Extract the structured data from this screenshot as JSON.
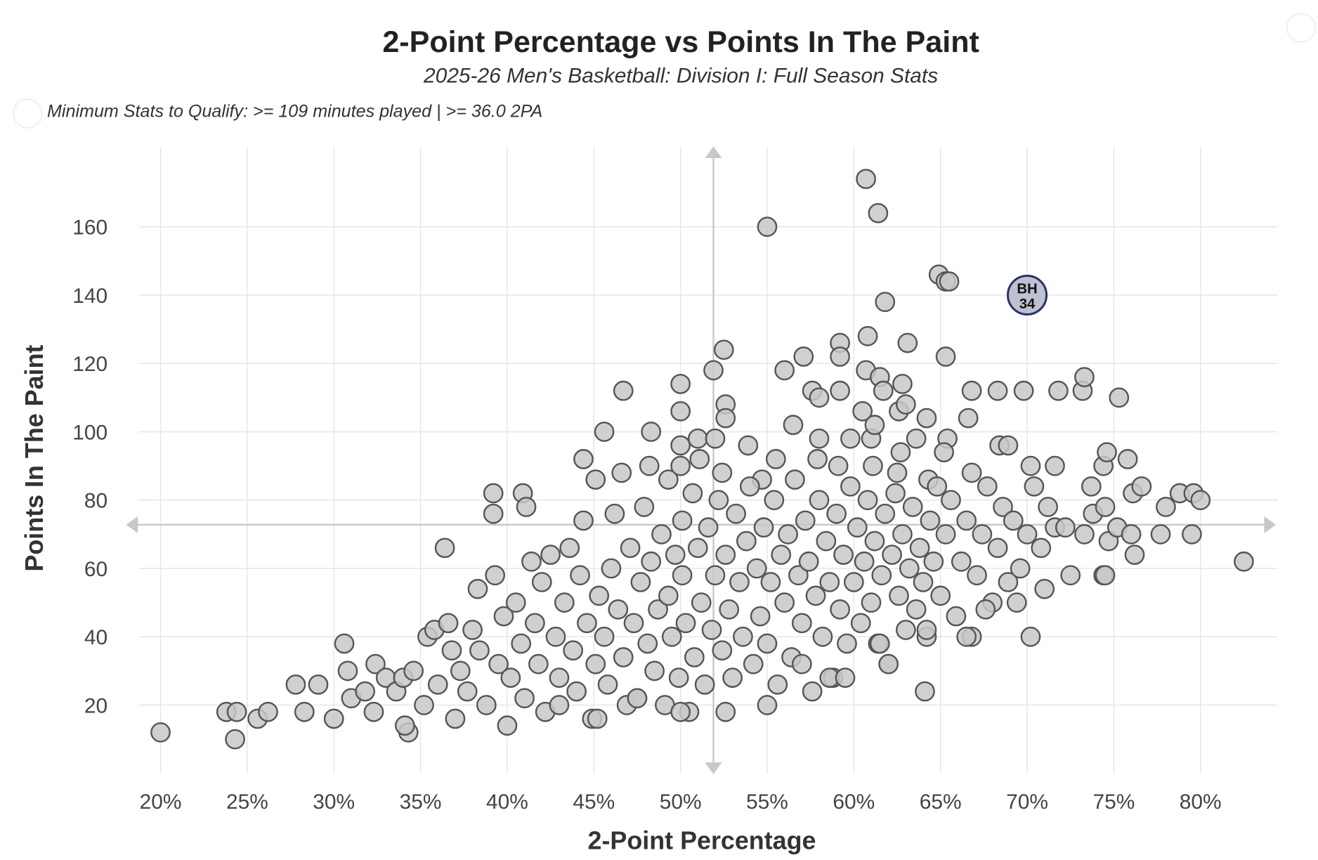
{
  "chart_data": {
    "type": "scatter",
    "title": "2-Point Percentage vs Points In The Paint",
    "subtitle": "2025-26 Men's Basketball: Division I: Full Season Stats",
    "note": "Minimum Stats to Qualify: >= 109 minutes played | >= 36.0 2PA",
    "xlabel": "2-Point Percentage",
    "ylabel": "Points In The Paint",
    "xlim": [
      17.5,
      84.5
    ],
    "ylim": [
      0,
      178
    ],
    "xticks": [
      20,
      25,
      30,
      35,
      40,
      45,
      50,
      55,
      60,
      65,
      70,
      75,
      80
    ],
    "xtick_labels": [
      "20%",
      "25%",
      "30%",
      "35%",
      "40%",
      "45%",
      "50%",
      "55%",
      "60%",
      "65%",
      "70%",
      "75%",
      "80%"
    ],
    "yticks": [
      20,
      40,
      60,
      80,
      100,
      120,
      140,
      160
    ],
    "ytick_labels": [
      "20",
      "40",
      "60",
      "80",
      "100",
      "120",
      "140",
      "160"
    ],
    "grid": true,
    "reference_lines": {
      "x": 51.9,
      "y": 72.8
    },
    "colors": {
      "point_fill": "#c8c8c8",
      "point_stroke": "#555555",
      "highlight_fill": "#c0c1cf",
      "highlight_stroke": "#26326a"
    },
    "highlight": {
      "x": 70.0,
      "y": 140,
      "label_line1": "BH",
      "label_line2": "34"
    },
    "points": [
      [
        60.7,
        174
      ],
      [
        61.4,
        164
      ],
      [
        55.0,
        160
      ],
      [
        64.9,
        146
      ],
      [
        65.3,
        144
      ],
      [
        65.5,
        144
      ],
      [
        61.8,
        138
      ],
      [
        59.2,
        126
      ],
      [
        63.1,
        126
      ],
      [
        60.8,
        128
      ],
      [
        52.5,
        124
      ],
      [
        51.9,
        118
      ],
      [
        56.0,
        118
      ],
      [
        60.7,
        118
      ],
      [
        65.3,
        122
      ],
      [
        59.2,
        122
      ],
      [
        57.1,
        122
      ],
      [
        46.7,
        112
      ],
      [
        50.0,
        114
      ],
      [
        61.5,
        116
      ],
      [
        61.7,
        112
      ],
      [
        62.8,
        114
      ],
      [
        66.8,
        112
      ],
      [
        68.3,
        112
      ],
      [
        69.8,
        112
      ],
      [
        71.8,
        112
      ],
      [
        73.2,
        112
      ],
      [
        73.3,
        116
      ],
      [
        75.3,
        110
      ],
      [
        50.0,
        106
      ],
      [
        52.6,
        108
      ],
      [
        57.6,
        112
      ],
      [
        58.0,
        110
      ],
      [
        59.2,
        112
      ],
      [
        60.5,
        106
      ],
      [
        61.0,
        98
      ],
      [
        62.6,
        106
      ],
      [
        63.0,
        108
      ],
      [
        63.6,
        98
      ],
      [
        64.2,
        104
      ],
      [
        65.4,
        98
      ],
      [
        66.6,
        104
      ],
      [
        45.6,
        100
      ],
      [
        48.3,
        100
      ],
      [
        50.0,
        96
      ],
      [
        51.0,
        98
      ],
      [
        52.0,
        98
      ],
      [
        52.6,
        104
      ],
      [
        53.9,
        96
      ],
      [
        56.5,
        102
      ],
      [
        58.0,
        98
      ],
      [
        59.8,
        98
      ],
      [
        61.2,
        102
      ],
      [
        62.7,
        94
      ],
      [
        65.2,
        94
      ],
      [
        68.4,
        96
      ],
      [
        68.9,
        96
      ],
      [
        44.4,
        92
      ],
      [
        45.1,
        86
      ],
      [
        46.6,
        88
      ],
      [
        48.2,
        90
      ],
      [
        49.3,
        86
      ],
      [
        50.0,
        90
      ],
      [
        51.1,
        92
      ],
      [
        52.4,
        88
      ],
      [
        54.7,
        86
      ],
      [
        55.5,
        92
      ],
      [
        57.9,
        92
      ],
      [
        59.1,
        90
      ],
      [
        61.1,
        90
      ],
      [
        62.5,
        88
      ],
      [
        64.3,
        86
      ],
      [
        66.8,
        88
      ],
      [
        70.2,
        90
      ],
      [
        71.6,
        90
      ],
      [
        74.4,
        90
      ],
      [
        20.0,
        12
      ],
      [
        24.3,
        10
      ],
      [
        23.8,
        18
      ],
      [
        24.4,
        18
      ],
      [
        25.6,
        16
      ],
      [
        26.2,
        18
      ],
      [
        27.8,
        26
      ],
      [
        28.3,
        18
      ],
      [
        29.1,
        26
      ],
      [
        30.0,
        16
      ],
      [
        30.6,
        38
      ],
      [
        30.8,
        30
      ],
      [
        31.0,
        22
      ],
      [
        31.8,
        24
      ],
      [
        32.3,
        18
      ],
      [
        32.4,
        32
      ],
      [
        33.0,
        28
      ],
      [
        33.6,
        24
      ],
      [
        34.3,
        12
      ],
      [
        34.1,
        14
      ],
      [
        34.0,
        28
      ],
      [
        34.6,
        30
      ],
      [
        35.2,
        20
      ],
      [
        35.4,
        40
      ],
      [
        35.8,
        42
      ],
      [
        36.0,
        26
      ],
      [
        36.4,
        66
      ],
      [
        36.6,
        44
      ],
      [
        36.8,
        36
      ],
      [
        37.0,
        16
      ],
      [
        37.3,
        30
      ],
      [
        37.7,
        24
      ],
      [
        38.0,
        42
      ],
      [
        38.3,
        54
      ],
      [
        38.4,
        36
      ],
      [
        38.8,
        20
      ],
      [
        39.2,
        82
      ],
      [
        39.2,
        76
      ],
      [
        39.3,
        58
      ],
      [
        39.5,
        32
      ],
      [
        39.8,
        46
      ],
      [
        40.0,
        14
      ],
      [
        40.2,
        28
      ],
      [
        40.5,
        50
      ],
      [
        40.8,
        38
      ],
      [
        40.9,
        82
      ],
      [
        41.1,
        78
      ],
      [
        41.0,
        22
      ],
      [
        41.4,
        62
      ],
      [
        41.6,
        44
      ],
      [
        41.8,
        32
      ],
      [
        42.0,
        56
      ],
      [
        42.2,
        18
      ],
      [
        42.5,
        64
      ],
      [
        42.8,
        40
      ],
      [
        43.0,
        28
      ],
      [
        43.3,
        50
      ],
      [
        43.6,
        66
      ],
      [
        43.8,
        36
      ],
      [
        44.0,
        24
      ],
      [
        44.2,
        58
      ],
      [
        44.4,
        74
      ],
      [
        44.6,
        44
      ],
      [
        44.9,
        16
      ],
      [
        45.1,
        32
      ],
      [
        45.3,
        52
      ],
      [
        45.6,
        40
      ],
      [
        45.8,
        26
      ],
      [
        46.0,
        60
      ],
      [
        46.2,
        76
      ],
      [
        46.4,
        48
      ],
      [
        46.7,
        34
      ],
      [
        46.9,
        20
      ],
      [
        47.1,
        66
      ],
      [
        47.3,
        44
      ],
      [
        47.5,
        22
      ],
      [
        47.7,
        56
      ],
      [
        47.9,
        78
      ],
      [
        48.1,
        38
      ],
      [
        48.3,
        62
      ],
      [
        48.5,
        30
      ],
      [
        48.7,
        48
      ],
      [
        48.9,
        70
      ],
      [
        49.1,
        20
      ],
      [
        49.3,
        52
      ],
      [
        49.5,
        40
      ],
      [
        49.7,
        64
      ],
      [
        49.9,
        28
      ],
      [
        50.1,
        74
      ],
      [
        50.1,
        58
      ],
      [
        50.3,
        44
      ],
      [
        50.5,
        18
      ],
      [
        50.7,
        82
      ],
      [
        50.8,
        34
      ],
      [
        51.0,
        66
      ],
      [
        51.2,
        50
      ],
      [
        51.4,
        26
      ],
      [
        51.6,
        72
      ],
      [
        51.8,
        42
      ],
      [
        52.0,
        58
      ],
      [
        52.2,
        80
      ],
      [
        52.4,
        36
      ],
      [
        52.6,
        64
      ],
      [
        52.8,
        48
      ],
      [
        53.0,
        28
      ],
      [
        53.2,
        76
      ],
      [
        53.4,
        56
      ],
      [
        53.6,
        40
      ],
      [
        53.8,
        68
      ],
      [
        54.0,
        84
      ],
      [
        54.2,
        32
      ],
      [
        54.4,
        60
      ],
      [
        54.6,
        46
      ],
      [
        54.8,
        72
      ],
      [
        55.0,
        38
      ],
      [
        55.2,
        56
      ],
      [
        55.4,
        80
      ],
      [
        55.6,
        26
      ],
      [
        55.8,
        64
      ],
      [
        56.0,
        50
      ],
      [
        56.2,
        70
      ],
      [
        56.4,
        34
      ],
      [
        56.6,
        86
      ],
      [
        56.8,
        58
      ],
      [
        57.0,
        44
      ],
      [
        57.2,
        74
      ],
      [
        57.4,
        62
      ],
      [
        57.6,
        24
      ],
      [
        57.8,
        52
      ],
      [
        58.0,
        80
      ],
      [
        58.2,
        40
      ],
      [
        58.4,
        68
      ],
      [
        58.6,
        56
      ],
      [
        58.8,
        28
      ],
      [
        59.0,
        76
      ],
      [
        59.2,
        48
      ],
      [
        59.4,
        64
      ],
      [
        59.6,
        38
      ],
      [
        59.8,
        84
      ],
      [
        60.0,
        56
      ],
      [
        60.2,
        72
      ],
      [
        60.4,
        44
      ],
      [
        60.6,
        62
      ],
      [
        60.8,
        80
      ],
      [
        61.0,
        50
      ],
      [
        61.2,
        68
      ],
      [
        61.4,
        38
      ],
      [
        61.6,
        58
      ],
      [
        61.8,
        76
      ],
      [
        62.0,
        32
      ],
      [
        62.2,
        64
      ],
      [
        62.4,
        82
      ],
      [
        62.6,
        52
      ],
      [
        62.8,
        70
      ],
      [
        63.0,
        42
      ],
      [
        63.2,
        60
      ],
      [
        63.4,
        78
      ],
      [
        63.6,
        48
      ],
      [
        63.8,
        66
      ],
      [
        64.0,
        56
      ],
      [
        64.2,
        40
      ],
      [
        64.4,
        74
      ],
      [
        64.6,
        62
      ],
      [
        64.8,
        84
      ],
      [
        65.0,
        52
      ],
      [
        65.3,
        70
      ],
      [
        65.6,
        80
      ],
      [
        65.9,
        46
      ],
      [
        66.2,
        62
      ],
      [
        66.5,
        74
      ],
      [
        66.8,
        40
      ],
      [
        67.1,
        58
      ],
      [
        67.4,
        70
      ],
      [
        67.7,
        84
      ],
      [
        68.0,
        50
      ],
      [
        68.3,
        66
      ],
      [
        68.6,
        78
      ],
      [
        68.9,
        56
      ],
      [
        69.2,
        74
      ],
      [
        69.6,
        60
      ],
      [
        70.0,
        70
      ],
      [
        70.4,
        84
      ],
      [
        70.8,
        66
      ],
      [
        71.2,
        78
      ],
      [
        71.6,
        72
      ],
      [
        71.0,
        54
      ],
      [
        70.2,
        40
      ],
      [
        72.5,
        58
      ],
      [
        72.2,
        72
      ],
      [
        73.3,
        70
      ],
      [
        73.7,
        84
      ],
      [
        73.8,
        76
      ],
      [
        74.4,
        58
      ],
      [
        74.5,
        58
      ],
      [
        74.5,
        78
      ],
      [
        74.6,
        94
      ],
      [
        74.7,
        68
      ],
      [
        75.2,
        72
      ],
      [
        75.8,
        92
      ],
      [
        76.0,
        70
      ],
      [
        76.1,
        82
      ],
      [
        76.2,
        64
      ],
      [
        76.6,
        84
      ],
      [
        77.7,
        70
      ],
      [
        78.0,
        78
      ],
      [
        78.8,
        82
      ],
      [
        79.6,
        82
      ],
      [
        80.0,
        80
      ],
      [
        79.5,
        70
      ],
      [
        82.5,
        62
      ],
      [
        64.1,
        24
      ],
      [
        55.0,
        20
      ],
      [
        52.6,
        18
      ],
      [
        50.0,
        18
      ],
      [
        47.5,
        22
      ],
      [
        45.2,
        16
      ],
      [
        43.0,
        20
      ],
      [
        58.6,
        28
      ],
      [
        59.5,
        28
      ],
      [
        57.0,
        32
      ],
      [
        62.0,
        32
      ],
      [
        61.5,
        38
      ],
      [
        64.2,
        42
      ],
      [
        66.5,
        40
      ],
      [
        67.6,
        48
      ],
      [
        69.4,
        50
      ]
    ]
  },
  "controls": {
    "top_right_circle": "menu-circle",
    "left_circle": "info-circle"
  }
}
